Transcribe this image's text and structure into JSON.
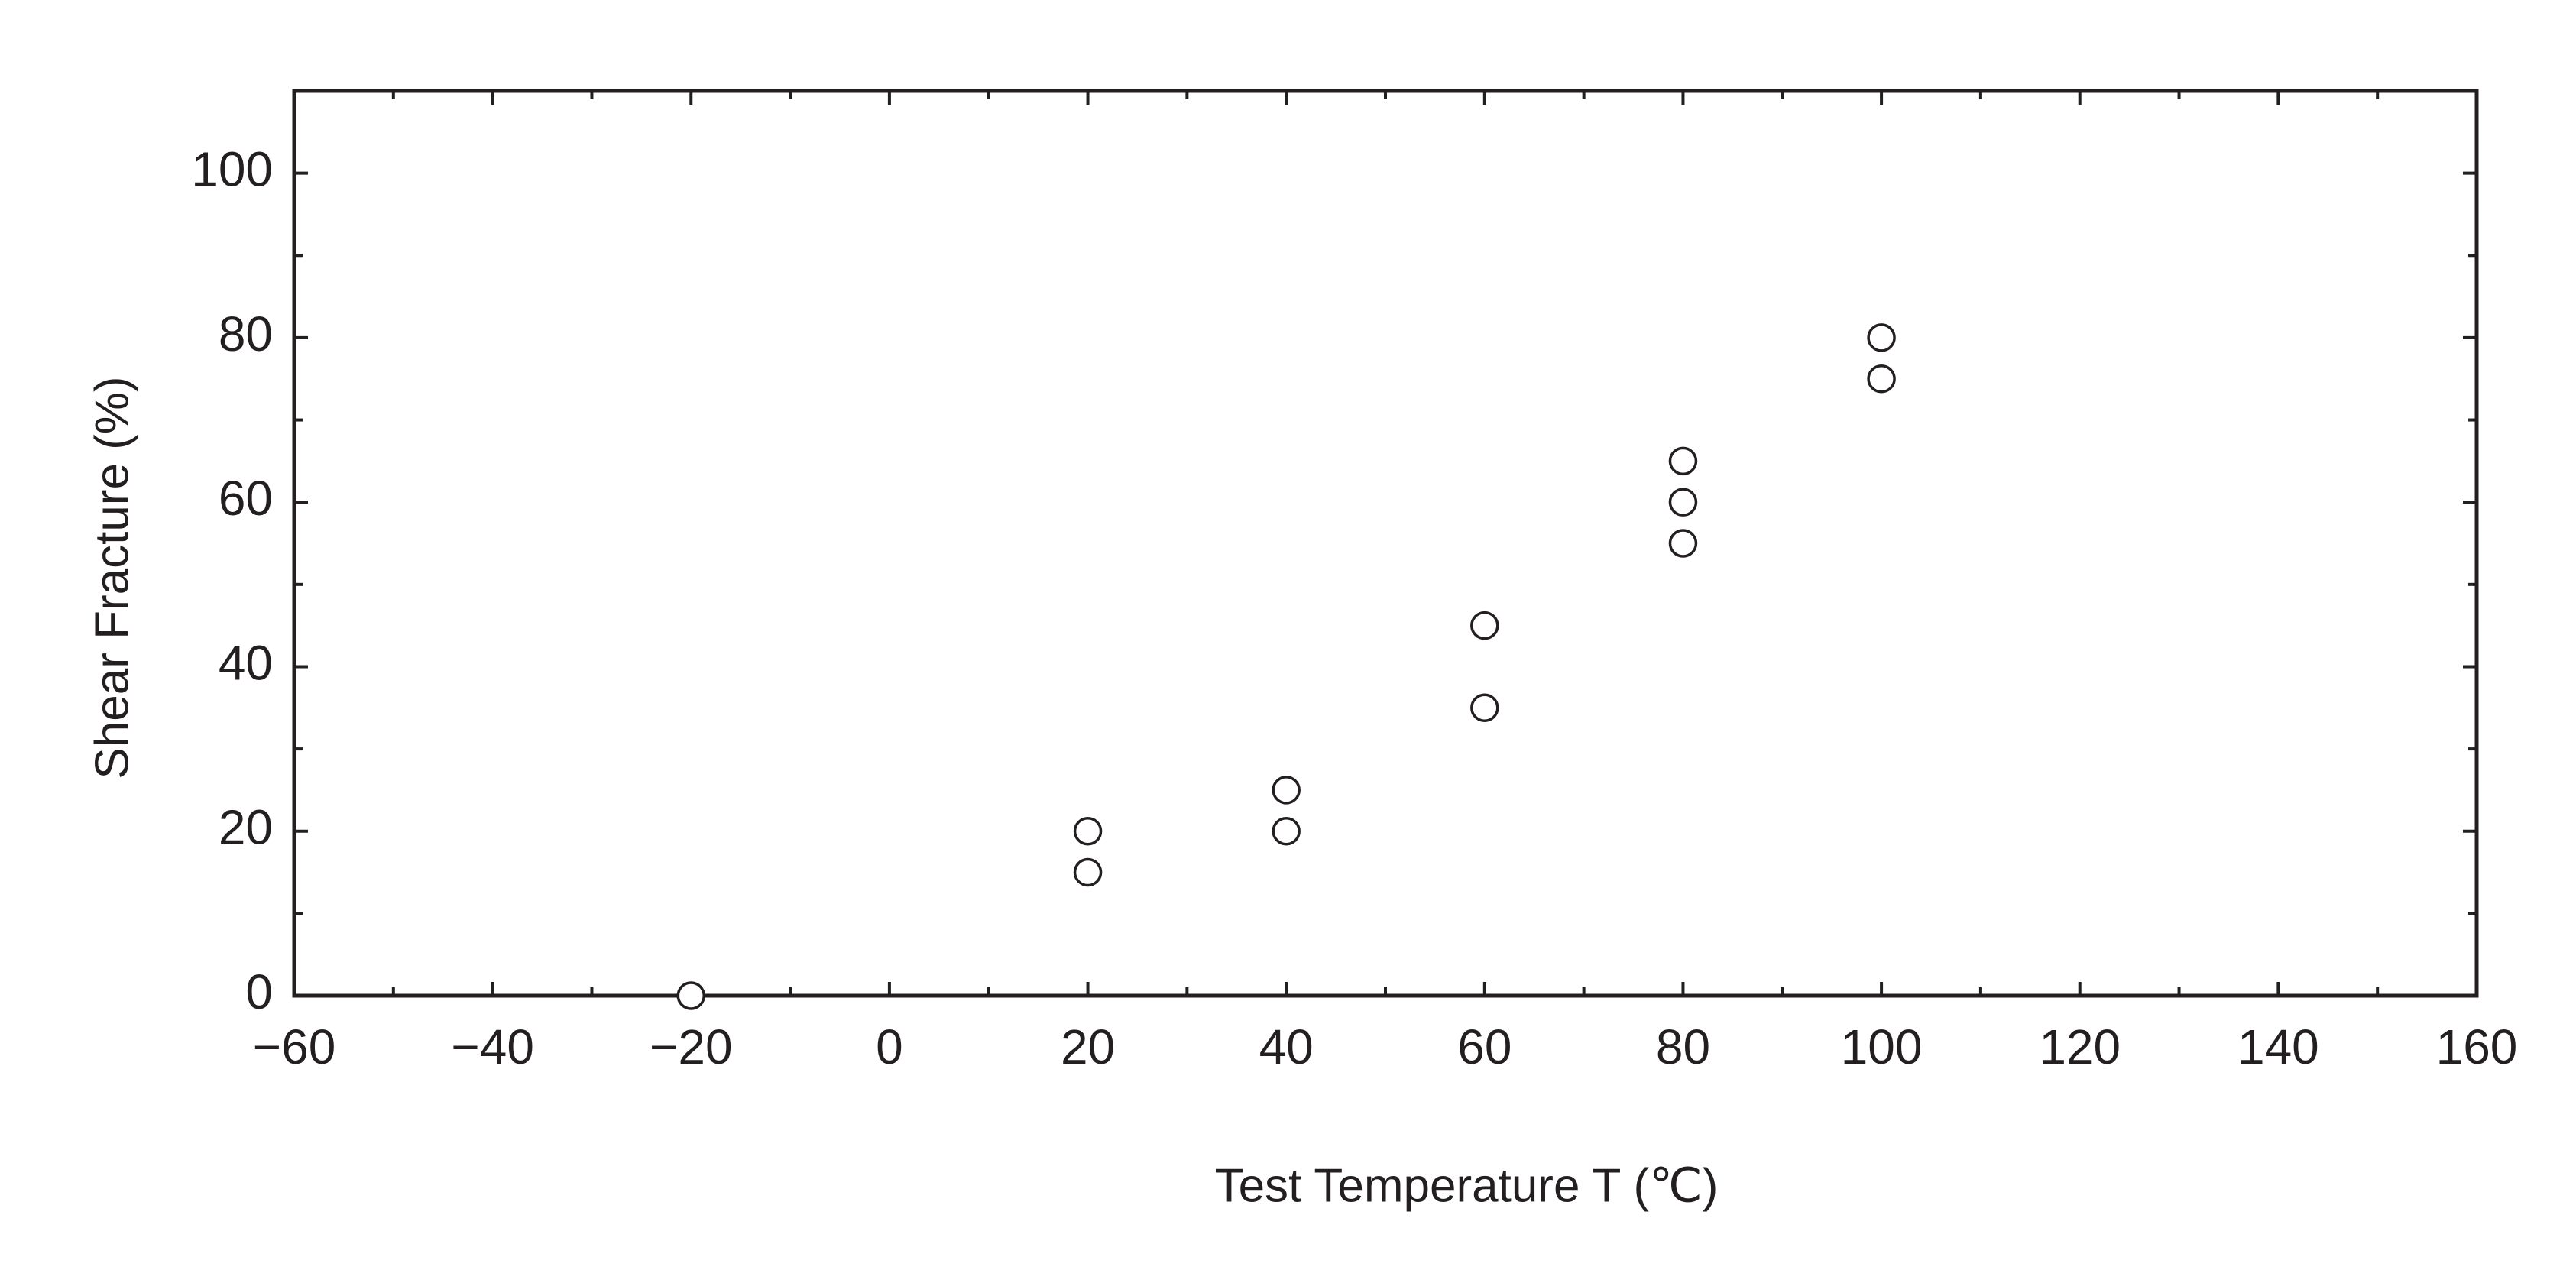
{
  "chart_data": {
    "type": "scatter",
    "x_label": "Test Temperature  T  (℃)",
    "y_label": "Shear Fracture   (%)",
    "x": [
      -20,
      20,
      20,
      40,
      40,
      60,
      60,
      80,
      80,
      80,
      100,
      100
    ],
    "values": [
      0,
      20,
      15,
      25,
      20,
      45,
      35,
      65,
      60,
      55,
      80,
      75
    ],
    "color": "#231f20",
    "marker": "open-circle",
    "xlim": [
      -60,
      160
    ],
    "ylim": [
      0,
      110
    ],
    "xticks": [
      {
        "value": -60,
        "label": "−60"
      },
      {
        "value": -40,
        "label": "−40"
      },
      {
        "value": -20,
        "label": "−20"
      },
      0,
      20,
      40,
      60,
      80,
      100,
      120,
      140,
      160
    ],
    "yticks": [
      0,
      20,
      40,
      60,
      80,
      100
    ],
    "x_minor_ticks": [
      -50,
      -30,
      -10,
      10,
      30,
      50,
      70,
      90,
      110,
      130,
      150
    ],
    "y_minor_ticks": [
      10,
      30,
      50,
      70,
      90
    ],
    "grid": false
  }
}
